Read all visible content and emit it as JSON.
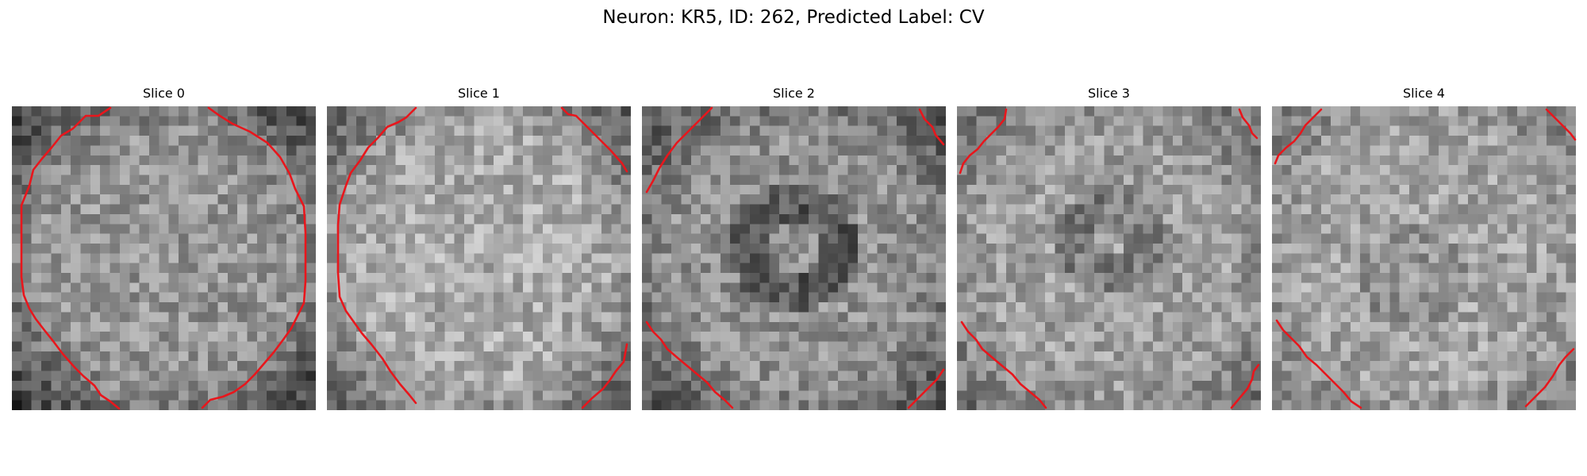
{
  "figure": {
    "title": "Neuron: KR5, ID: 262, Predicted Label: CV"
  },
  "colors": {
    "contour": "#e8161c",
    "background": "#ffffff",
    "colormap": "grayscale"
  },
  "slices": [
    {
      "title": "Slice 0"
    },
    {
      "title": "Slice 1"
    },
    {
      "title": "Slice 2"
    },
    {
      "title": "Slice 3"
    },
    {
      "title": "Slice 4"
    }
  ]
}
